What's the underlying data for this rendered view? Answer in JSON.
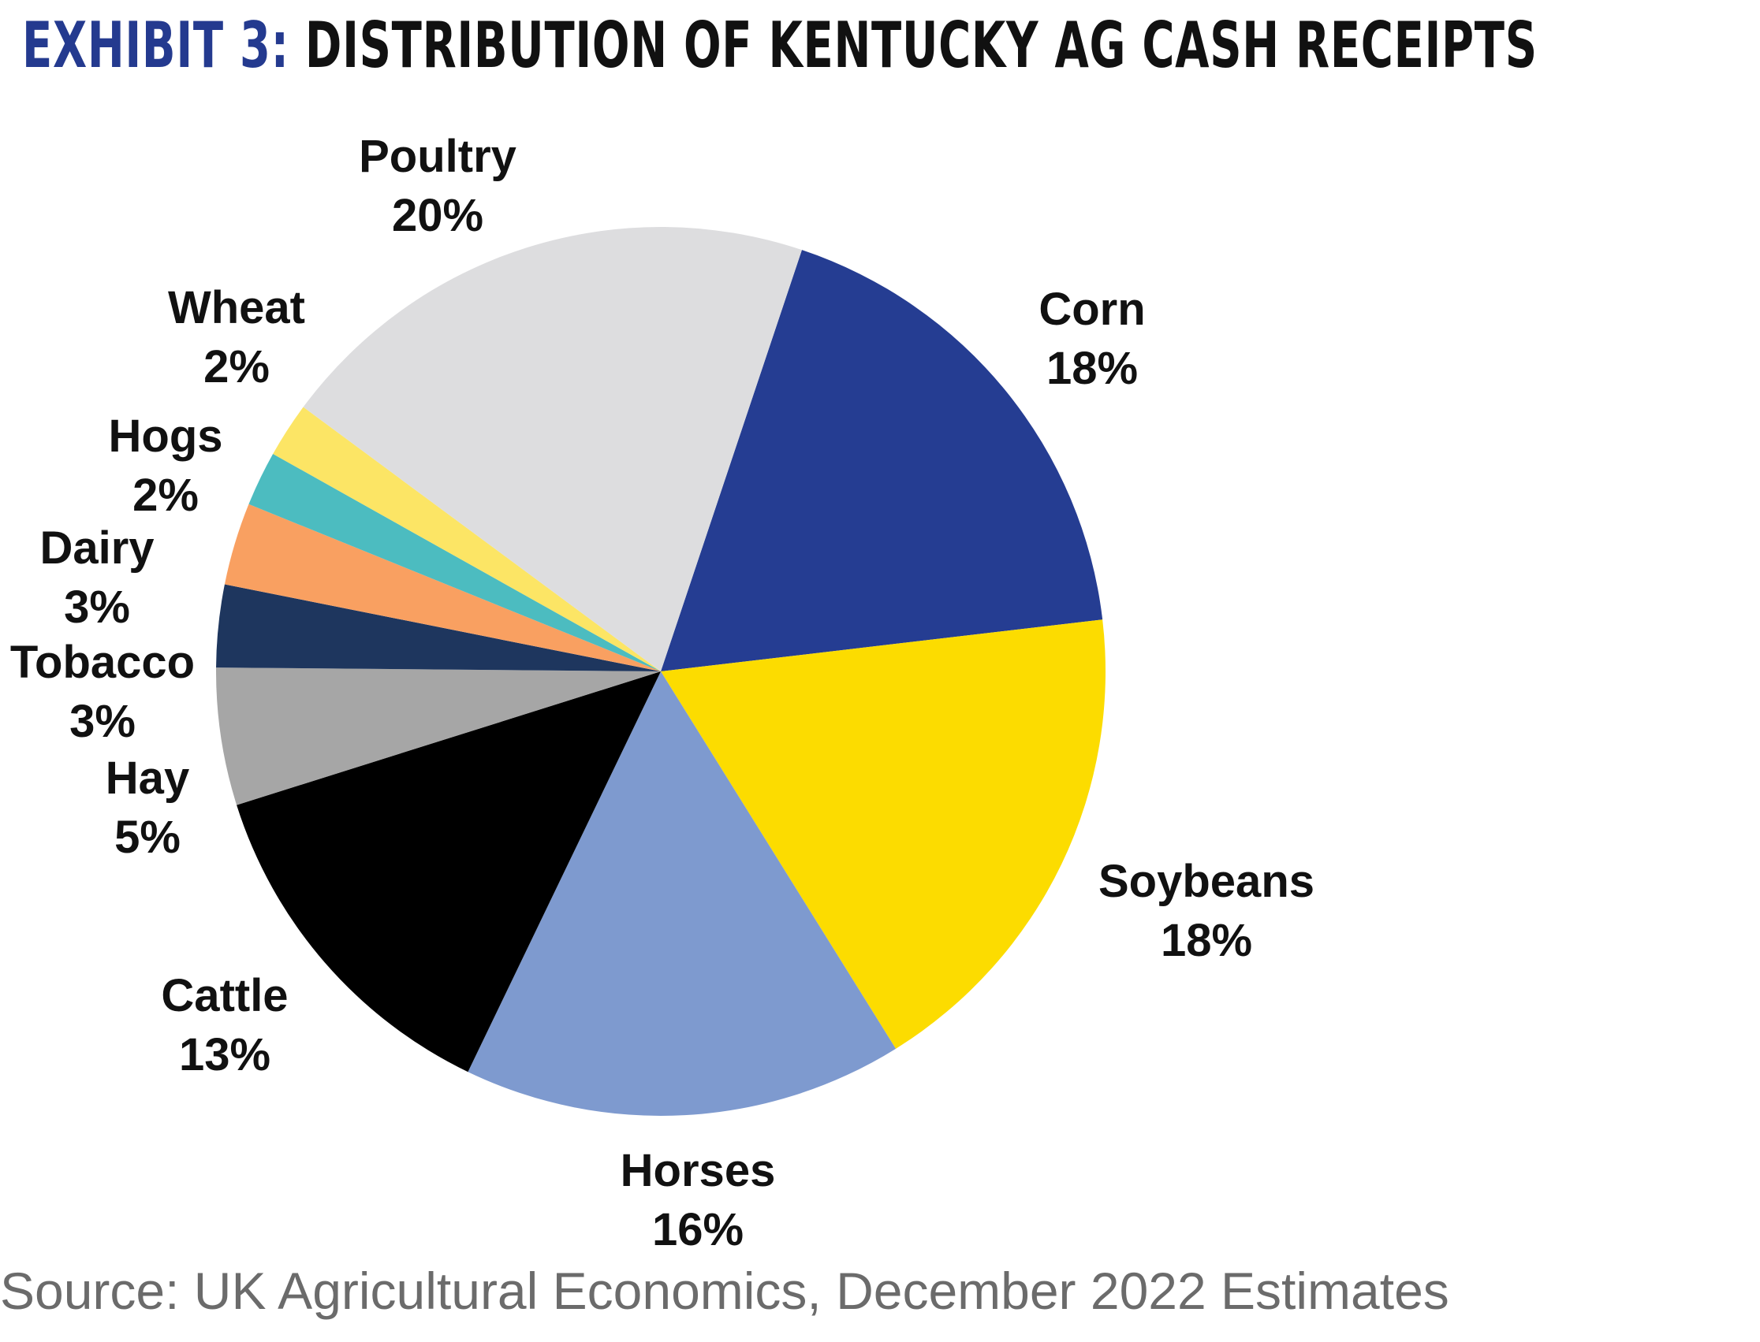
{
  "header": {
    "prefix": "EXHIBIT 3:",
    "title": "DISTRIBUTION OF KENTUCKY AG CASH RECEIPTS"
  },
  "source": "Source: UK Agricultural Economics, December 2022 Estimates",
  "chart_data": {
    "type": "pie",
    "title": "EXHIBIT 3: DISTRIBUTION OF KENTUCKY AG CASH RECEIPTS",
    "categories": [
      "Corn",
      "Soybeans",
      "Horses",
      "Cattle",
      "Hay",
      "Tobacco",
      "Dairy",
      "Hogs",
      "Wheat",
      "Poultry"
    ],
    "values": [
      18,
      18,
      16,
      13,
      5,
      3,
      3,
      2,
      2,
      20
    ],
    "value_labels": [
      "18%",
      "18%",
      "16%",
      "13%",
      "5%",
      "3%",
      "3%",
      "2%",
      "2%",
      "20%"
    ],
    "colors": [
      "#253d92",
      "#fcdc00",
      "#7e9acf",
      "#000000",
      "#a6a6a6",
      "#1e365e",
      "#f9a061",
      "#4cbcc0",
      "#fce565",
      "#dddddf"
    ],
    "start_angle_deg": 18.5,
    "direction": "clockwise",
    "legend": "none; labels outside slices"
  }
}
